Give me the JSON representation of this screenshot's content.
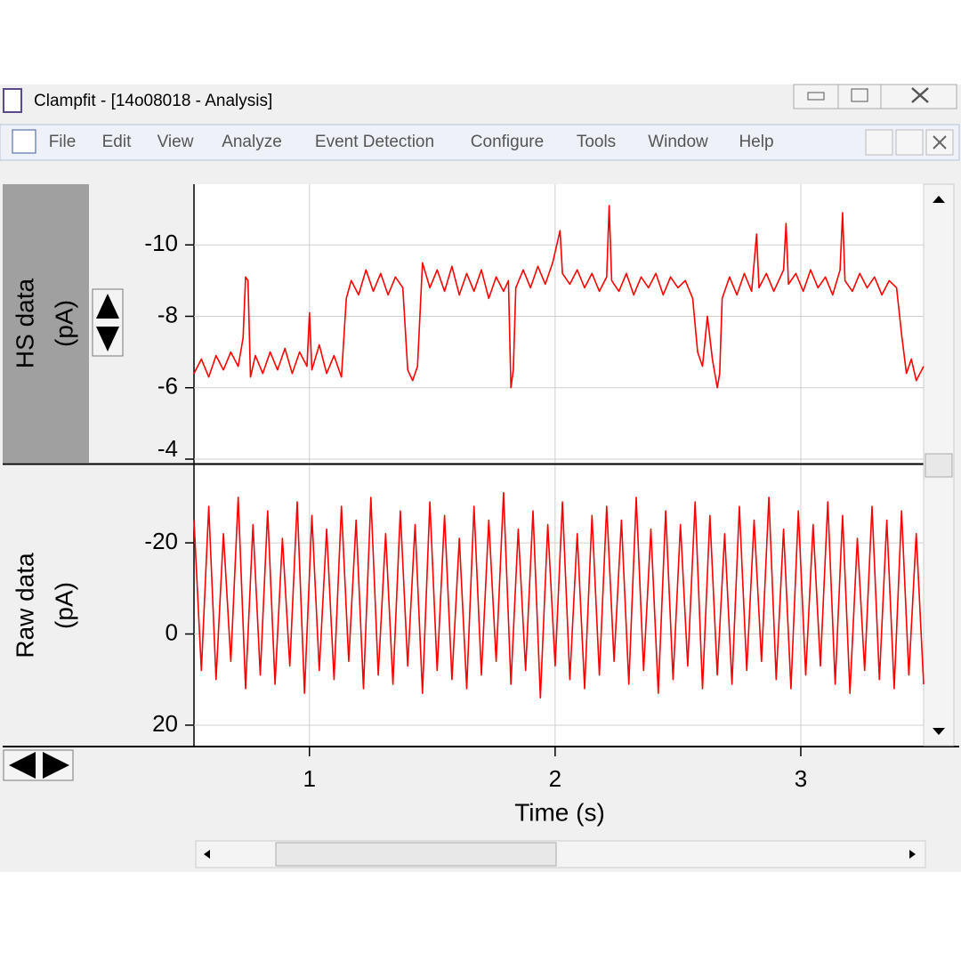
{
  "window": {
    "title": "Clampfit - [14o08018 - Analysis]"
  },
  "menu": [
    "File",
    "Edit",
    "View",
    "Analyze",
    "Event Detection",
    "Configure",
    "Tools",
    "Window",
    "Help"
  ],
  "chart_data": [
    {
      "type": "line",
      "ylabel": [
        "HS data",
        "(pA)"
      ],
      "x": [
        0.53,
        0.56,
        0.59,
        0.62,
        0.65,
        0.68,
        0.71,
        0.73,
        0.74,
        0.75,
        0.76,
        0.78,
        0.81,
        0.84,
        0.87,
        0.9,
        0.93,
        0.96,
        0.99,
        1.0,
        1.01,
        1.04,
        1.07,
        1.1,
        1.13,
        1.15,
        1.17,
        1.2,
        1.23,
        1.26,
        1.29,
        1.32,
        1.35,
        1.38,
        1.4,
        1.42,
        1.44,
        1.46,
        1.49,
        1.52,
        1.55,
        1.58,
        1.61,
        1.64,
        1.67,
        1.7,
        1.73,
        1.76,
        1.79,
        1.81,
        1.82,
        1.83,
        1.84,
        1.87,
        1.9,
        1.93,
        1.96,
        1.99,
        2.02,
        2.03,
        2.06,
        2.09,
        2.12,
        2.15,
        2.18,
        2.21,
        2.22,
        2.23,
        2.26,
        2.29,
        2.32,
        2.35,
        2.38,
        2.41,
        2.44,
        2.47,
        2.5,
        2.53,
        2.56,
        2.58,
        2.6,
        2.62,
        2.64,
        2.66,
        2.67,
        2.68,
        2.71,
        2.74,
        2.77,
        2.8,
        2.82,
        2.83,
        2.86,
        2.89,
        2.93,
        2.94,
        2.95,
        2.98,
        3.01,
        3.04,
        3.07,
        3.1,
        3.13,
        3.16,
        3.17,
        3.18,
        3.21,
        3.24,
        3.27,
        3.3,
        3.33,
        3.36,
        3.39,
        3.41,
        3.43,
        3.45,
        3.47,
        3.5
      ],
      "series": [
        {
          "color": "#ff0000",
          "values": [
            -6.4,
            -6.8,
            -6.3,
            -6.9,
            -6.5,
            -7.0,
            -6.6,
            -7.4,
            -9.1,
            -9.0,
            -6.3,
            -6.9,
            -6.4,
            -7.0,
            -6.5,
            -7.1,
            -6.4,
            -7.0,
            -6.6,
            -8.1,
            -6.5,
            -7.2,
            -6.4,
            -6.9,
            -6.3,
            -8.5,
            -9.0,
            -8.6,
            -9.3,
            -8.7,
            -9.2,
            -8.6,
            -9.1,
            -8.8,
            -6.5,
            -6.2,
            -6.6,
            -9.5,
            -8.8,
            -9.3,
            -8.7,
            -9.4,
            -8.6,
            -9.2,
            -8.7,
            -9.3,
            -8.5,
            -9.1,
            -8.7,
            -9.0,
            -6.0,
            -6.5,
            -8.8,
            -9.3,
            -8.8,
            -9.4,
            -8.9,
            -9.5,
            -10.4,
            -9.2,
            -8.9,
            -9.3,
            -8.8,
            -9.2,
            -8.7,
            -9.1,
            -11.1,
            -9.0,
            -8.7,
            -9.2,
            -8.6,
            -9.1,
            -8.8,
            -9.2,
            -8.6,
            -9.1,
            -8.8,
            -9.0,
            -8.5,
            -7.0,
            -6.6,
            -8.0,
            -6.8,
            -6.0,
            -6.4,
            -8.5,
            -9.1,
            -8.6,
            -9.2,
            -8.7,
            -10.3,
            -8.8,
            -9.2,
            -8.7,
            -9.3,
            -10.6,
            -8.9,
            -9.2,
            -8.7,
            -9.3,
            -8.8,
            -9.1,
            -8.6,
            -9.3,
            -10.9,
            -9.0,
            -8.7,
            -9.2,
            -8.8,
            -9.1,
            -8.6,
            -9.0,
            -8.8,
            -7.5,
            -6.4,
            -6.8,
            -6.2,
            -6.6
          ]
        }
      ],
      "xlim": [
        0.53,
        3.5
      ],
      "ylim": [
        -3.9,
        -11.7
      ],
      "yticks": [
        -10,
        -8,
        -6,
        -4
      ],
      "grid": true
    },
    {
      "type": "line",
      "ylabel": [
        "Raw data",
        "(pA)"
      ],
      "xlabel": "Time (s)",
      "x": [
        0.53,
        0.56,
        0.59,
        0.62,
        0.65,
        0.68,
        0.71,
        0.74,
        0.77,
        0.8,
        0.83,
        0.86,
        0.89,
        0.92,
        0.95,
        0.98,
        1.01,
        1.04,
        1.07,
        1.1,
        1.13,
        1.16,
        1.19,
        1.22,
        1.25,
        1.28,
        1.31,
        1.34,
        1.37,
        1.4,
        1.43,
        1.46,
        1.49,
        1.52,
        1.55,
        1.58,
        1.61,
        1.64,
        1.67,
        1.7,
        1.73,
        1.76,
        1.79,
        1.82,
        1.85,
        1.88,
        1.91,
        1.94,
        1.97,
        2.0,
        2.03,
        2.06,
        2.09,
        2.12,
        2.15,
        2.18,
        2.21,
        2.24,
        2.27,
        2.3,
        2.33,
        2.36,
        2.39,
        2.42,
        2.45,
        2.48,
        2.51,
        2.54,
        2.57,
        2.6,
        2.63,
        2.66,
        2.69,
        2.72,
        2.75,
        2.78,
        2.81,
        2.84,
        2.87,
        2.9,
        2.93,
        2.96,
        2.99,
        3.02,
        3.05,
        3.08,
        3.11,
        3.14,
        3.17,
        3.2,
        3.23,
        3.26,
        3.29,
        3.32,
        3.35,
        3.38,
        3.41,
        3.44,
        3.47,
        3.5
      ],
      "series": [
        {
          "color": "#ff0000",
          "values": [
            -25,
            8,
            -28,
            10,
            -22,
            6,
            -30,
            12,
            -24,
            9,
            -27,
            11,
            -21,
            7,
            -29,
            13,
            -26,
            8,
            -23,
            10,
            -28,
            6,
            -25,
            12,
            -30,
            9,
            -22,
            11,
            -27,
            7,
            -24,
            13,
            -29,
            8,
            -26,
            10,
            -21,
            12,
            -28,
            9,
            -25,
            6,
            -31,
            11,
            -23,
            8,
            -27,
            14,
            -24,
            7,
            -29,
            10,
            -22,
            12,
            -26,
            9,
            -28,
            6,
            -25,
            11,
            -30,
            8,
            -23,
            13,
            -27,
            10,
            -24,
            7,
            -29,
            12,
            -26,
            9,
            -22,
            11,
            -28,
            8,
            -25,
            6,
            -30,
            10,
            -23,
            12,
            -27,
            9,
            -24,
            7,
            -29,
            11,
            -26,
            13,
            -21,
            8,
            -28,
            10,
            -25,
            12,
            -27,
            9,
            -22,
            11
          ]
        }
      ],
      "xlim": [
        0.53,
        3.5
      ],
      "xticks": [
        1,
        2,
        3
      ],
      "ylim": [
        24.5,
        -37
      ],
      "yticks": [
        -20,
        0,
        20
      ],
      "grid": true
    }
  ]
}
